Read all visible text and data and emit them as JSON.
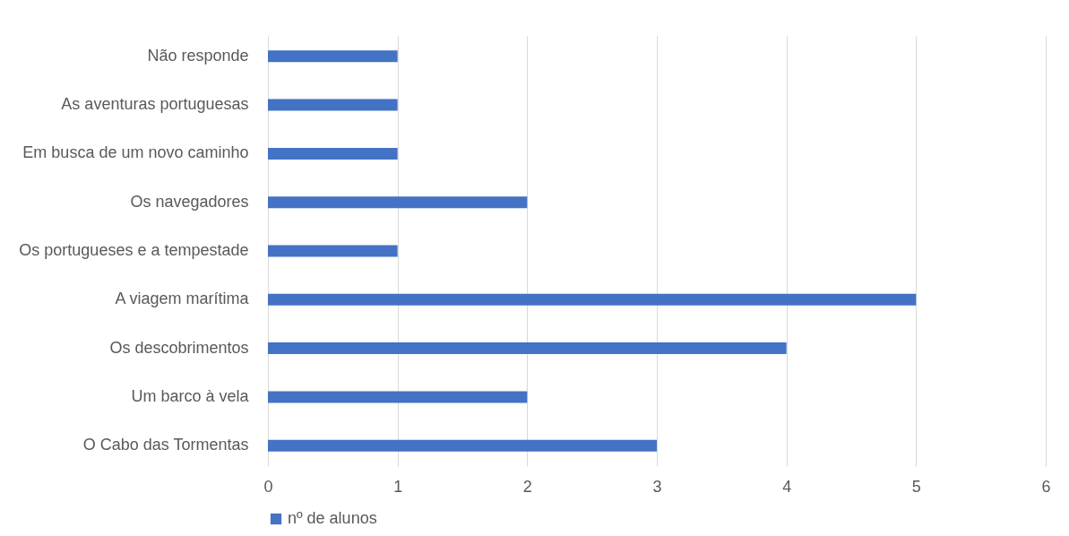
{
  "chart_data": {
    "type": "bar",
    "orientation": "horizontal",
    "categories": [
      "Não responde",
      "As aventuras portuguesas",
      "Em busca de um novo caminho",
      "Os navegadores",
      "Os portugueses e a tempestade",
      "A viagem marítima",
      "Os descobrimentos",
      "Um barco à vela",
      "O Cabo das Tormentas"
    ],
    "series": [
      {
        "name": "nº de alunos",
        "color": "#4472c4",
        "values": [
          1,
          1,
          1,
          2,
          1,
          5,
          4,
          2,
          3
        ]
      }
    ],
    "xlim": [
      0,
      6
    ],
    "xticks": [
      0,
      1,
      2,
      3,
      4,
      5,
      6
    ],
    "grid": "x",
    "legend": "bottom"
  }
}
